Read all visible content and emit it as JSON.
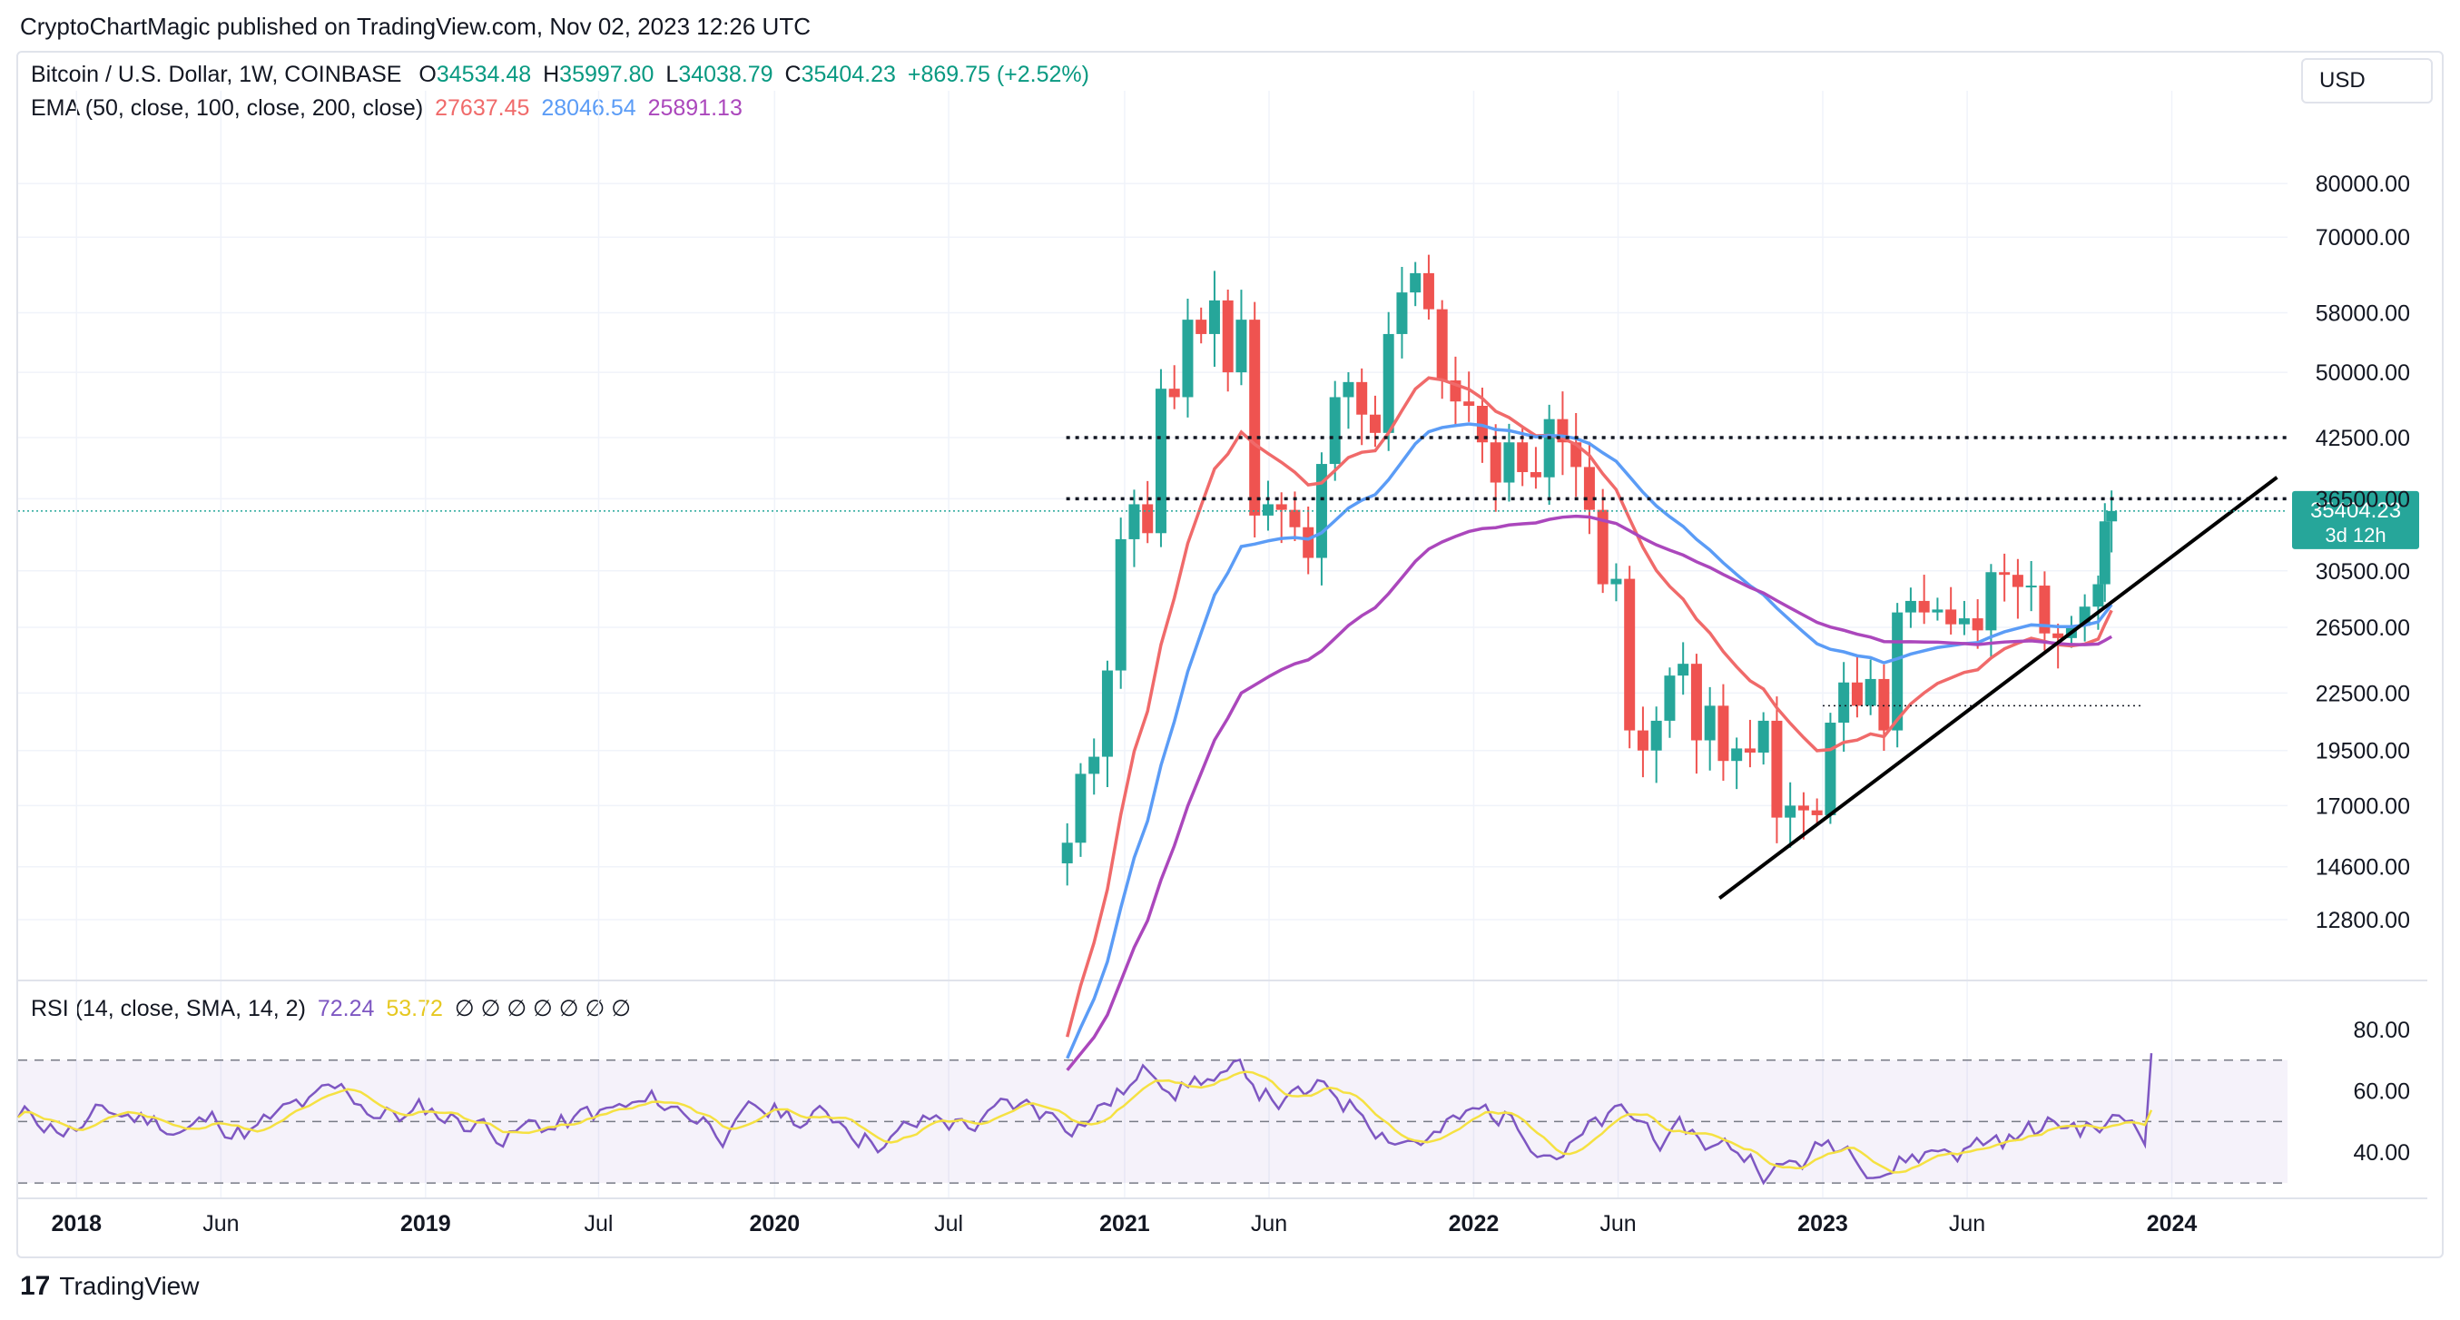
{
  "header": {
    "publisher_line": "CryptoChartMagic published on TradingView.com, Nov 02, 2023 12:26 UTC"
  },
  "legend": {
    "symbol": "Bitcoin / U.S. Dollar, 1W, COINBASE",
    "o_label": "O",
    "o": "34534.48",
    "h_label": "H",
    "h": "35997.80",
    "l_label": "L",
    "l": "34038.79",
    "c_label": "C",
    "c": "35404.23",
    "change": "+869.75 (+2.52%)",
    "ema_label": "EMA (50, close, 100, close, 200, close)",
    "ema50": "27637.45",
    "ema100": "28046.54",
    "ema200": "25891.13",
    "rsi_label": "RSI (14, close, SMA, 14, 2)",
    "rsi": "72.24",
    "rsi_sma": "53.72",
    "rsi_extra": "∅ ∅ ∅ ∅ ∅ ∅ ∅"
  },
  "currency": "USD",
  "price_tag": {
    "price": "35404.23",
    "countdown": "3d 12h"
  },
  "footer": {
    "brand": "TradingView",
    "logo_glyph": "17"
  },
  "colors": {
    "up": "#26a69a",
    "down": "#ef5350",
    "ema50": "#f06a6a",
    "ema100": "#5b9cf6",
    "ema200": "#ab47bc",
    "rsi": "#7e57c2",
    "rsi_sma": "#f5e142",
    "text": "#131722"
  },
  "chart_data": [
    {
      "type": "candlestick",
      "title": "Bitcoin / U.S. Dollar, 1W, COINBASE",
      "yscale": "log",
      "x_ticks": [
        "2018",
        "Jun",
        "2019",
        "Jul",
        "2020",
        "Jul",
        "2021",
        "Jun",
        "2022",
        "Jun",
        "2023",
        "Jun",
        "2024"
      ],
      "y_ticks": [
        "80000.00",
        "70000.00",
        "58000.00",
        "50000.00",
        "42500.00",
        "36500.00",
        "30500.00",
        "26500.00",
        "22500.00",
        "19500.00",
        "17000.00",
        "14600.00",
        "12800.00"
      ],
      "ylim": [
        11000,
        88000
      ],
      "xlim": [
        "2017-11",
        "2024-05"
      ],
      "last_price": 35404.23,
      "series": [
        {
          "name": "BTC weekly close (approx.)",
          "points": [
            [
              "2020-11-02",
              15500
            ],
            [
              "2020-11-16",
              18400
            ],
            [
              "2020-11-30",
              19200
            ],
            [
              "2020-12-14",
              23800
            ],
            [
              "2020-12-28",
              33000
            ],
            [
              "2021-01-11",
              36000
            ],
            [
              "2021-01-25",
              33500
            ],
            [
              "2021-02-08",
              48000
            ],
            [
              "2021-02-22",
              47000
            ],
            [
              "2021-03-08",
              57000
            ],
            [
              "2021-03-22",
              55000
            ],
            [
              "2021-04-05",
              59800
            ],
            [
              "2021-04-19",
              50000
            ],
            [
              "2021-05-03",
              57000
            ],
            [
              "2021-05-17",
              35000
            ],
            [
              "2021-05-31",
              36000
            ],
            [
              "2021-06-14",
              35500
            ],
            [
              "2021-06-28",
              34000
            ],
            [
              "2021-07-12",
              31500
            ],
            [
              "2021-07-26",
              39800
            ],
            [
              "2021-08-09",
              47000
            ],
            [
              "2021-08-23",
              48800
            ],
            [
              "2021-09-06",
              45000
            ],
            [
              "2021-09-20",
              43000
            ],
            [
              "2021-10-04",
              55000
            ],
            [
              "2021-10-18",
              61000
            ],
            [
              "2021-11-01",
              64000
            ],
            [
              "2021-11-15",
              58500
            ],
            [
              "2021-11-29",
              49000
            ],
            [
              "2021-12-13",
              46500
            ],
            [
              "2021-12-27",
              46000
            ],
            [
              "2022-01-10",
              42000
            ],
            [
              "2022-01-24",
              38000
            ],
            [
              "2022-02-07",
              42000
            ],
            [
              "2022-02-21",
              39000
            ],
            [
              "2022-03-07",
              38500
            ],
            [
              "2022-03-21",
              44500
            ],
            [
              "2022-04-04",
              42000
            ],
            [
              "2022-04-18",
              39500
            ],
            [
              "2022-05-02",
              35500
            ],
            [
              "2022-05-16",
              29500
            ],
            [
              "2022-05-30",
              29900
            ],
            [
              "2022-06-13",
              20500
            ],
            [
              "2022-06-27",
              19500
            ],
            [
              "2022-07-11",
              21000
            ],
            [
              "2022-07-25",
              23500
            ],
            [
              "2022-08-08",
              24200
            ],
            [
              "2022-08-22",
              20000
            ],
            [
              "2022-09-05",
              21800
            ],
            [
              "2022-09-19",
              19000
            ],
            [
              "2022-10-03",
              19600
            ],
            [
              "2022-10-17",
              19400
            ],
            [
              "2022-10-31",
              21000
            ],
            [
              "2022-11-14",
              16500
            ],
            [
              "2022-11-28",
              17000
            ],
            [
              "2022-12-12",
              16800
            ],
            [
              "2022-12-26",
              16600
            ],
            [
              "2023-01-09",
              20900
            ],
            [
              "2023-01-23",
              23100
            ],
            [
              "2023-02-06",
              21800
            ],
            [
              "2023-02-20",
              23300
            ],
            [
              "2023-03-06",
              20500
            ],
            [
              "2023-03-20",
              27500
            ],
            [
              "2023-04-03",
              28300
            ],
            [
              "2023-04-17",
              27500
            ],
            [
              "2023-05-01",
              27700
            ],
            [
              "2023-05-15",
              26700
            ],
            [
              "2023-05-29",
              27100
            ],
            [
              "2023-06-12",
              26300
            ],
            [
              "2023-06-26",
              30400
            ],
            [
              "2023-07-10",
              30200
            ],
            [
              "2023-07-24",
              29300
            ],
            [
              "2023-08-07",
              29400
            ],
            [
              "2023-08-21",
              26100
            ],
            [
              "2023-09-04",
              25800
            ],
            [
              "2023-09-18",
              26600
            ],
            [
              "2023-10-02",
              27900
            ],
            [
              "2023-10-16",
              29500
            ],
            [
              "2023-10-23",
              34500
            ],
            [
              "2023-10-30",
              35404.23
            ]
          ]
        },
        {
          "name": "EMA 50",
          "last": 27637.45
        },
        {
          "name": "EMA 100",
          "last": 28046.54
        },
        {
          "name": "EMA 200",
          "last": 25891.13
        }
      ],
      "annotations": [
        "horizontal dotted line at 42500",
        "horizontal dotted line at 36500",
        "rising trendline from Nov 2022 low",
        "dotted line near 21800"
      ]
    },
    {
      "type": "line",
      "title": "RSI (14, close, SMA, 14, 2)",
      "y_ticks": [
        "80.00",
        "60.00",
        "40.00"
      ],
      "ylim": [
        25,
        90
      ],
      "bands": [
        30,
        50,
        70
      ],
      "series": [
        {
          "name": "RSI",
          "last": 72.24
        },
        {
          "name": "SMA",
          "last": 53.72
        }
      ]
    }
  ]
}
